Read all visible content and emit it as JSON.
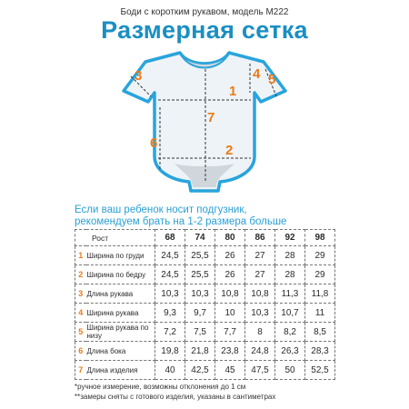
{
  "header": {
    "subtitle": "Боди с коротким рукавом, модель М222",
    "title": "Размерная сетка"
  },
  "diagram": {
    "labels": [
      "1",
      "2",
      "3",
      "4",
      "5",
      "6",
      "7"
    ],
    "colors": {
      "outline": "#29a4dc",
      "fill": "#eef3f7",
      "shade": "#cfd6dc",
      "accent": "#ea7b17"
    }
  },
  "note": {
    "line1": "Если ваш ребенок носит подгузник,",
    "line2": "рекомендуем брать на  1-2 размера больше"
  },
  "table": {
    "height_label": "Рост",
    "sizes": [
      "68",
      "74",
      "80",
      "86",
      "92",
      "98"
    ],
    "rows": [
      {
        "num": "1",
        "param": "Ширина по груди",
        "values": [
          "24,5",
          "25,5",
          "26",
          "27",
          "28",
          "29"
        ]
      },
      {
        "num": "2",
        "param": "Ширина по бедру",
        "values": [
          "24,5",
          "25,5",
          "26",
          "27",
          "28",
          "29"
        ]
      },
      {
        "num": "3",
        "param": "Длина рукава",
        "values": [
          "10,3",
          "10,3",
          "10,8",
          "10,8",
          "11,3",
          "11,8"
        ]
      },
      {
        "num": "4",
        "param": "Ширина рукава",
        "values": [
          "9,3",
          "9,7",
          "10",
          "10,3",
          "10,7",
          "11"
        ]
      },
      {
        "num": "5",
        "param": "Ширина рукава по низу",
        "values": [
          "7,2",
          "7,5",
          "7,7",
          "8",
          "8,2",
          "8,5"
        ]
      },
      {
        "num": "6",
        "param": "Длина бока",
        "values": [
          "19,8",
          "21,8",
          "23,8",
          "24,8",
          "26,3",
          "28,3"
        ]
      },
      {
        "num": "7",
        "param": "Длина изделия",
        "values": [
          "40",
          "42,5",
          "45",
          "47,5",
          "50",
          "52,5"
        ]
      }
    ]
  },
  "footnotes": {
    "line1": "*ручное измерение, возможны отклонения до 1 см",
    "line2": "**замеры сняты с готового изделия, указаны в сантиметрах"
  }
}
